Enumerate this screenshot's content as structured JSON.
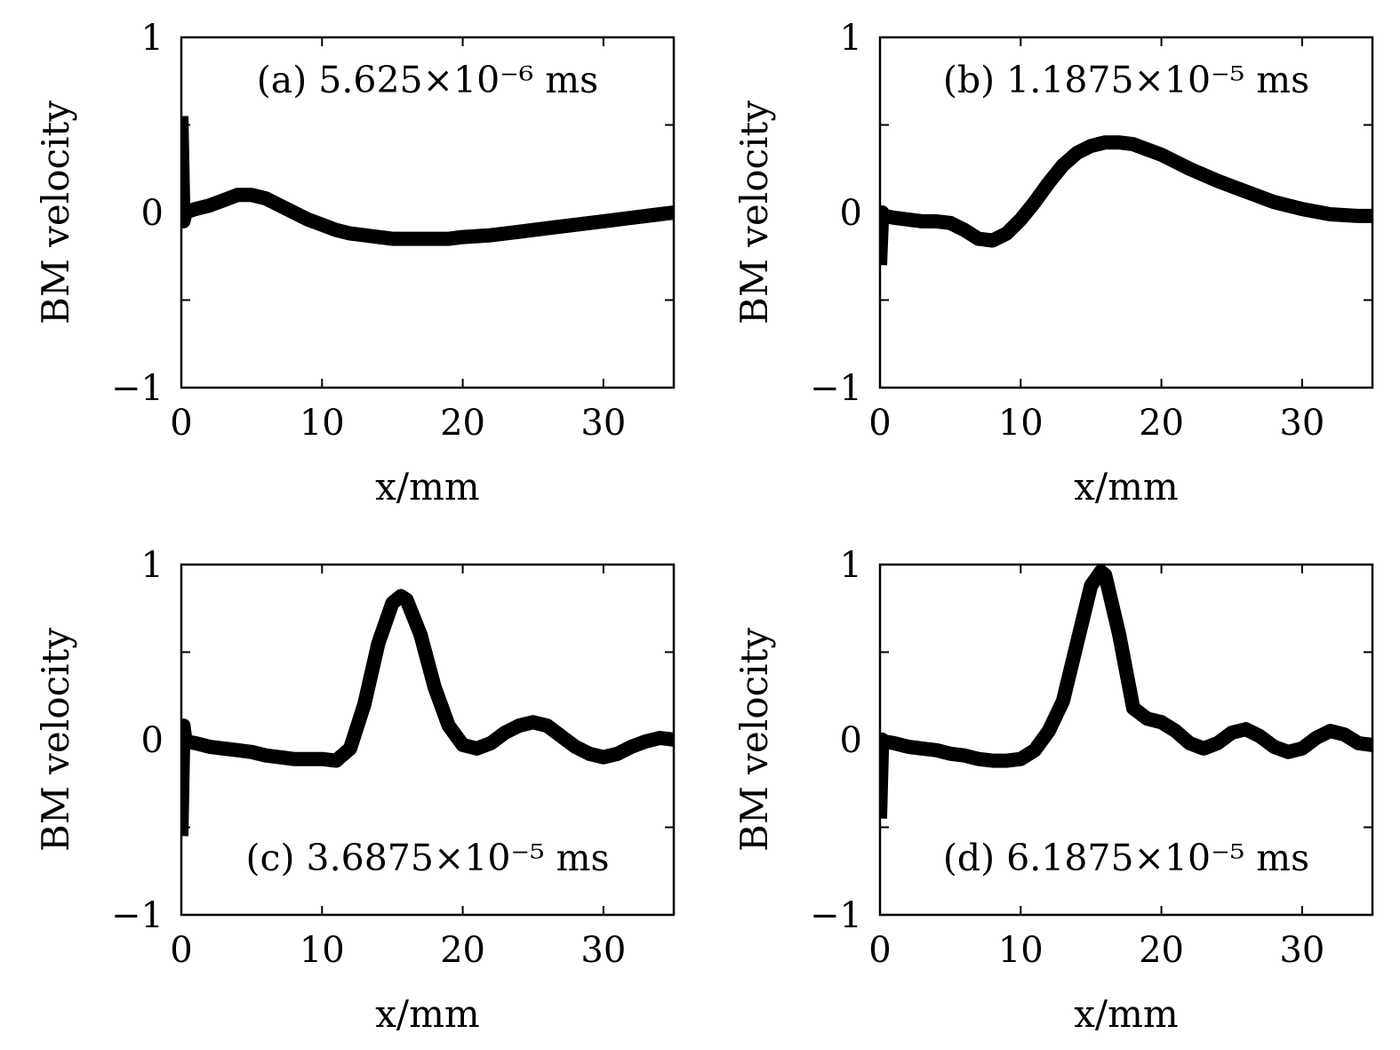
{
  "figure": {
    "colors": {
      "line": "#000000",
      "frame": "#000000",
      "background": "#ffffff"
    }
  },
  "chart_data": [
    {
      "type": "line",
      "panel": "a",
      "title": "(a) 5.625×10⁻⁶ ms",
      "xlabel": "x/mm",
      "ylabel": "BM velocity",
      "xlim": [
        0,
        35
      ],
      "ylim": [
        -1,
        1
      ],
      "xticks": [
        0,
        10,
        20,
        30
      ],
      "xtick_labels": [
        "0",
        "10",
        "20",
        "30"
      ],
      "yticks": [
        -1,
        -0.5,
        0,
        0.5,
        1
      ],
      "ytick_labels": [
        "−1",
        "",
        "0",
        "",
        "1"
      ],
      "title_position": "top-center",
      "series": [
        {
          "name": "BM velocity",
          "x": [
            0,
            0.15,
            0.3,
            1,
            2,
            3,
            4,
            5,
            6,
            7,
            8,
            9,
            10,
            11,
            12,
            13,
            14,
            15,
            16,
            17,
            18,
            19,
            20,
            22,
            24,
            26,
            28,
            30,
            32,
            34,
            35
          ],
          "y": [
            0.55,
            -0.05,
            0.0,
            0.02,
            0.04,
            0.07,
            0.1,
            0.1,
            0.08,
            0.04,
            0.0,
            -0.04,
            -0.07,
            -0.1,
            -0.12,
            -0.13,
            -0.14,
            -0.15,
            -0.15,
            -0.15,
            -0.15,
            -0.15,
            -0.14,
            -0.13,
            -0.11,
            -0.09,
            -0.07,
            -0.05,
            -0.03,
            -0.01,
            0.0
          ]
        }
      ]
    },
    {
      "type": "line",
      "panel": "b",
      "title": "(b) 1.1875×10⁻⁵ ms",
      "xlabel": "x/mm",
      "ylabel": "BM velocity",
      "xlim": [
        0,
        35
      ],
      "ylim": [
        -1,
        1
      ],
      "xticks": [
        0,
        10,
        20,
        30
      ],
      "xtick_labels": [
        "0",
        "10",
        "20",
        "30"
      ],
      "yticks": [
        -1,
        -0.5,
        0,
        0.5,
        1
      ],
      "ytick_labels": [
        "−1",
        "",
        "0",
        "",
        "1"
      ],
      "title_position": "top-center",
      "series": [
        {
          "name": "BM velocity",
          "x": [
            0,
            0.15,
            0.3,
            1,
            2,
            3,
            4,
            5,
            6,
            7,
            8,
            9,
            10,
            11,
            12,
            13,
            14,
            15,
            16,
            17,
            18,
            19,
            20,
            21,
            22,
            24,
            26,
            28,
            30,
            32,
            34,
            35
          ],
          "y": [
            -0.3,
            0.0,
            -0.02,
            -0.03,
            -0.04,
            -0.05,
            -0.05,
            -0.06,
            -0.1,
            -0.15,
            -0.16,
            -0.12,
            -0.04,
            0.06,
            0.17,
            0.27,
            0.34,
            0.38,
            0.4,
            0.4,
            0.39,
            0.36,
            0.33,
            0.29,
            0.25,
            0.18,
            0.12,
            0.06,
            0.02,
            -0.01,
            -0.02,
            -0.02
          ]
        }
      ]
    },
    {
      "type": "line",
      "panel": "c",
      "title": "(c) 3.6875×10⁻⁵ ms",
      "xlabel": "x/mm",
      "ylabel": "BM velocity",
      "xlim": [
        0,
        35
      ],
      "ylim": [
        -1,
        1
      ],
      "xticks": [
        0,
        10,
        20,
        30
      ],
      "xtick_labels": [
        "0",
        "10",
        "20",
        "30"
      ],
      "yticks": [
        -1,
        -0.5,
        0,
        0.5,
        1
      ],
      "ytick_labels": [
        "−1",
        "",
        "0",
        "",
        "1"
      ],
      "title_position": "bottom-center",
      "series": [
        {
          "name": "BM velocity",
          "x": [
            0,
            0.15,
            0.3,
            1,
            2,
            3,
            4,
            5,
            6,
            7,
            8,
            9,
            10,
            11,
            12,
            13,
            14,
            15,
            15.6,
            16,
            17,
            18,
            19,
            20,
            21,
            22,
            23,
            24,
            25,
            26,
            27,
            28,
            29,
            30,
            31,
            32,
            33,
            34,
            35
          ],
          "y": [
            -0.55,
            0.08,
            -0.01,
            -0.02,
            -0.04,
            -0.05,
            -0.06,
            -0.07,
            -0.09,
            -0.1,
            -0.11,
            -0.11,
            -0.11,
            -0.12,
            -0.05,
            0.2,
            0.55,
            0.78,
            0.82,
            0.8,
            0.6,
            0.3,
            0.08,
            -0.03,
            -0.05,
            -0.02,
            0.04,
            0.08,
            0.1,
            0.08,
            0.02,
            -0.04,
            -0.08,
            -0.1,
            -0.08,
            -0.04,
            -0.01,
            0.01,
            0.0
          ]
        }
      ]
    },
    {
      "type": "line",
      "panel": "d",
      "title": "(d) 6.1875×10⁻⁵ ms",
      "xlabel": "x/mm",
      "ylabel": "BM velocity",
      "xlim": [
        0,
        35
      ],
      "ylim": [
        -1,
        1
      ],
      "xticks": [
        0,
        10,
        20,
        30
      ],
      "xtick_labels": [
        "0",
        "10",
        "20",
        "30"
      ],
      "yticks": [
        -1,
        -0.5,
        0,
        0.5,
        1
      ],
      "ytick_labels": [
        "−1",
        "",
        "0",
        "",
        "1"
      ],
      "title_position": "bottom-center",
      "series": [
        {
          "name": "BM velocity",
          "x": [
            0,
            0.15,
            0.3,
            1,
            2,
            3,
            4,
            5,
            6,
            7,
            8,
            9,
            10,
            11,
            12,
            13,
            14,
            15,
            15.7,
            16,
            17,
            18,
            19,
            20,
            21,
            22,
            23,
            24,
            25,
            26,
            27,
            28,
            29,
            30,
            31,
            32,
            33,
            34,
            35
          ],
          "y": [
            -0.45,
            0.0,
            -0.01,
            -0.02,
            -0.04,
            -0.05,
            -0.06,
            -0.08,
            -0.09,
            -0.11,
            -0.12,
            -0.12,
            -0.11,
            -0.06,
            0.05,
            0.22,
            0.55,
            0.88,
            0.96,
            0.94,
            0.6,
            0.18,
            0.12,
            0.1,
            0.05,
            -0.02,
            -0.05,
            -0.02,
            0.04,
            0.06,
            0.02,
            -0.04,
            -0.07,
            -0.05,
            0.01,
            0.05,
            0.03,
            -0.02,
            -0.03
          ]
        }
      ]
    }
  ]
}
